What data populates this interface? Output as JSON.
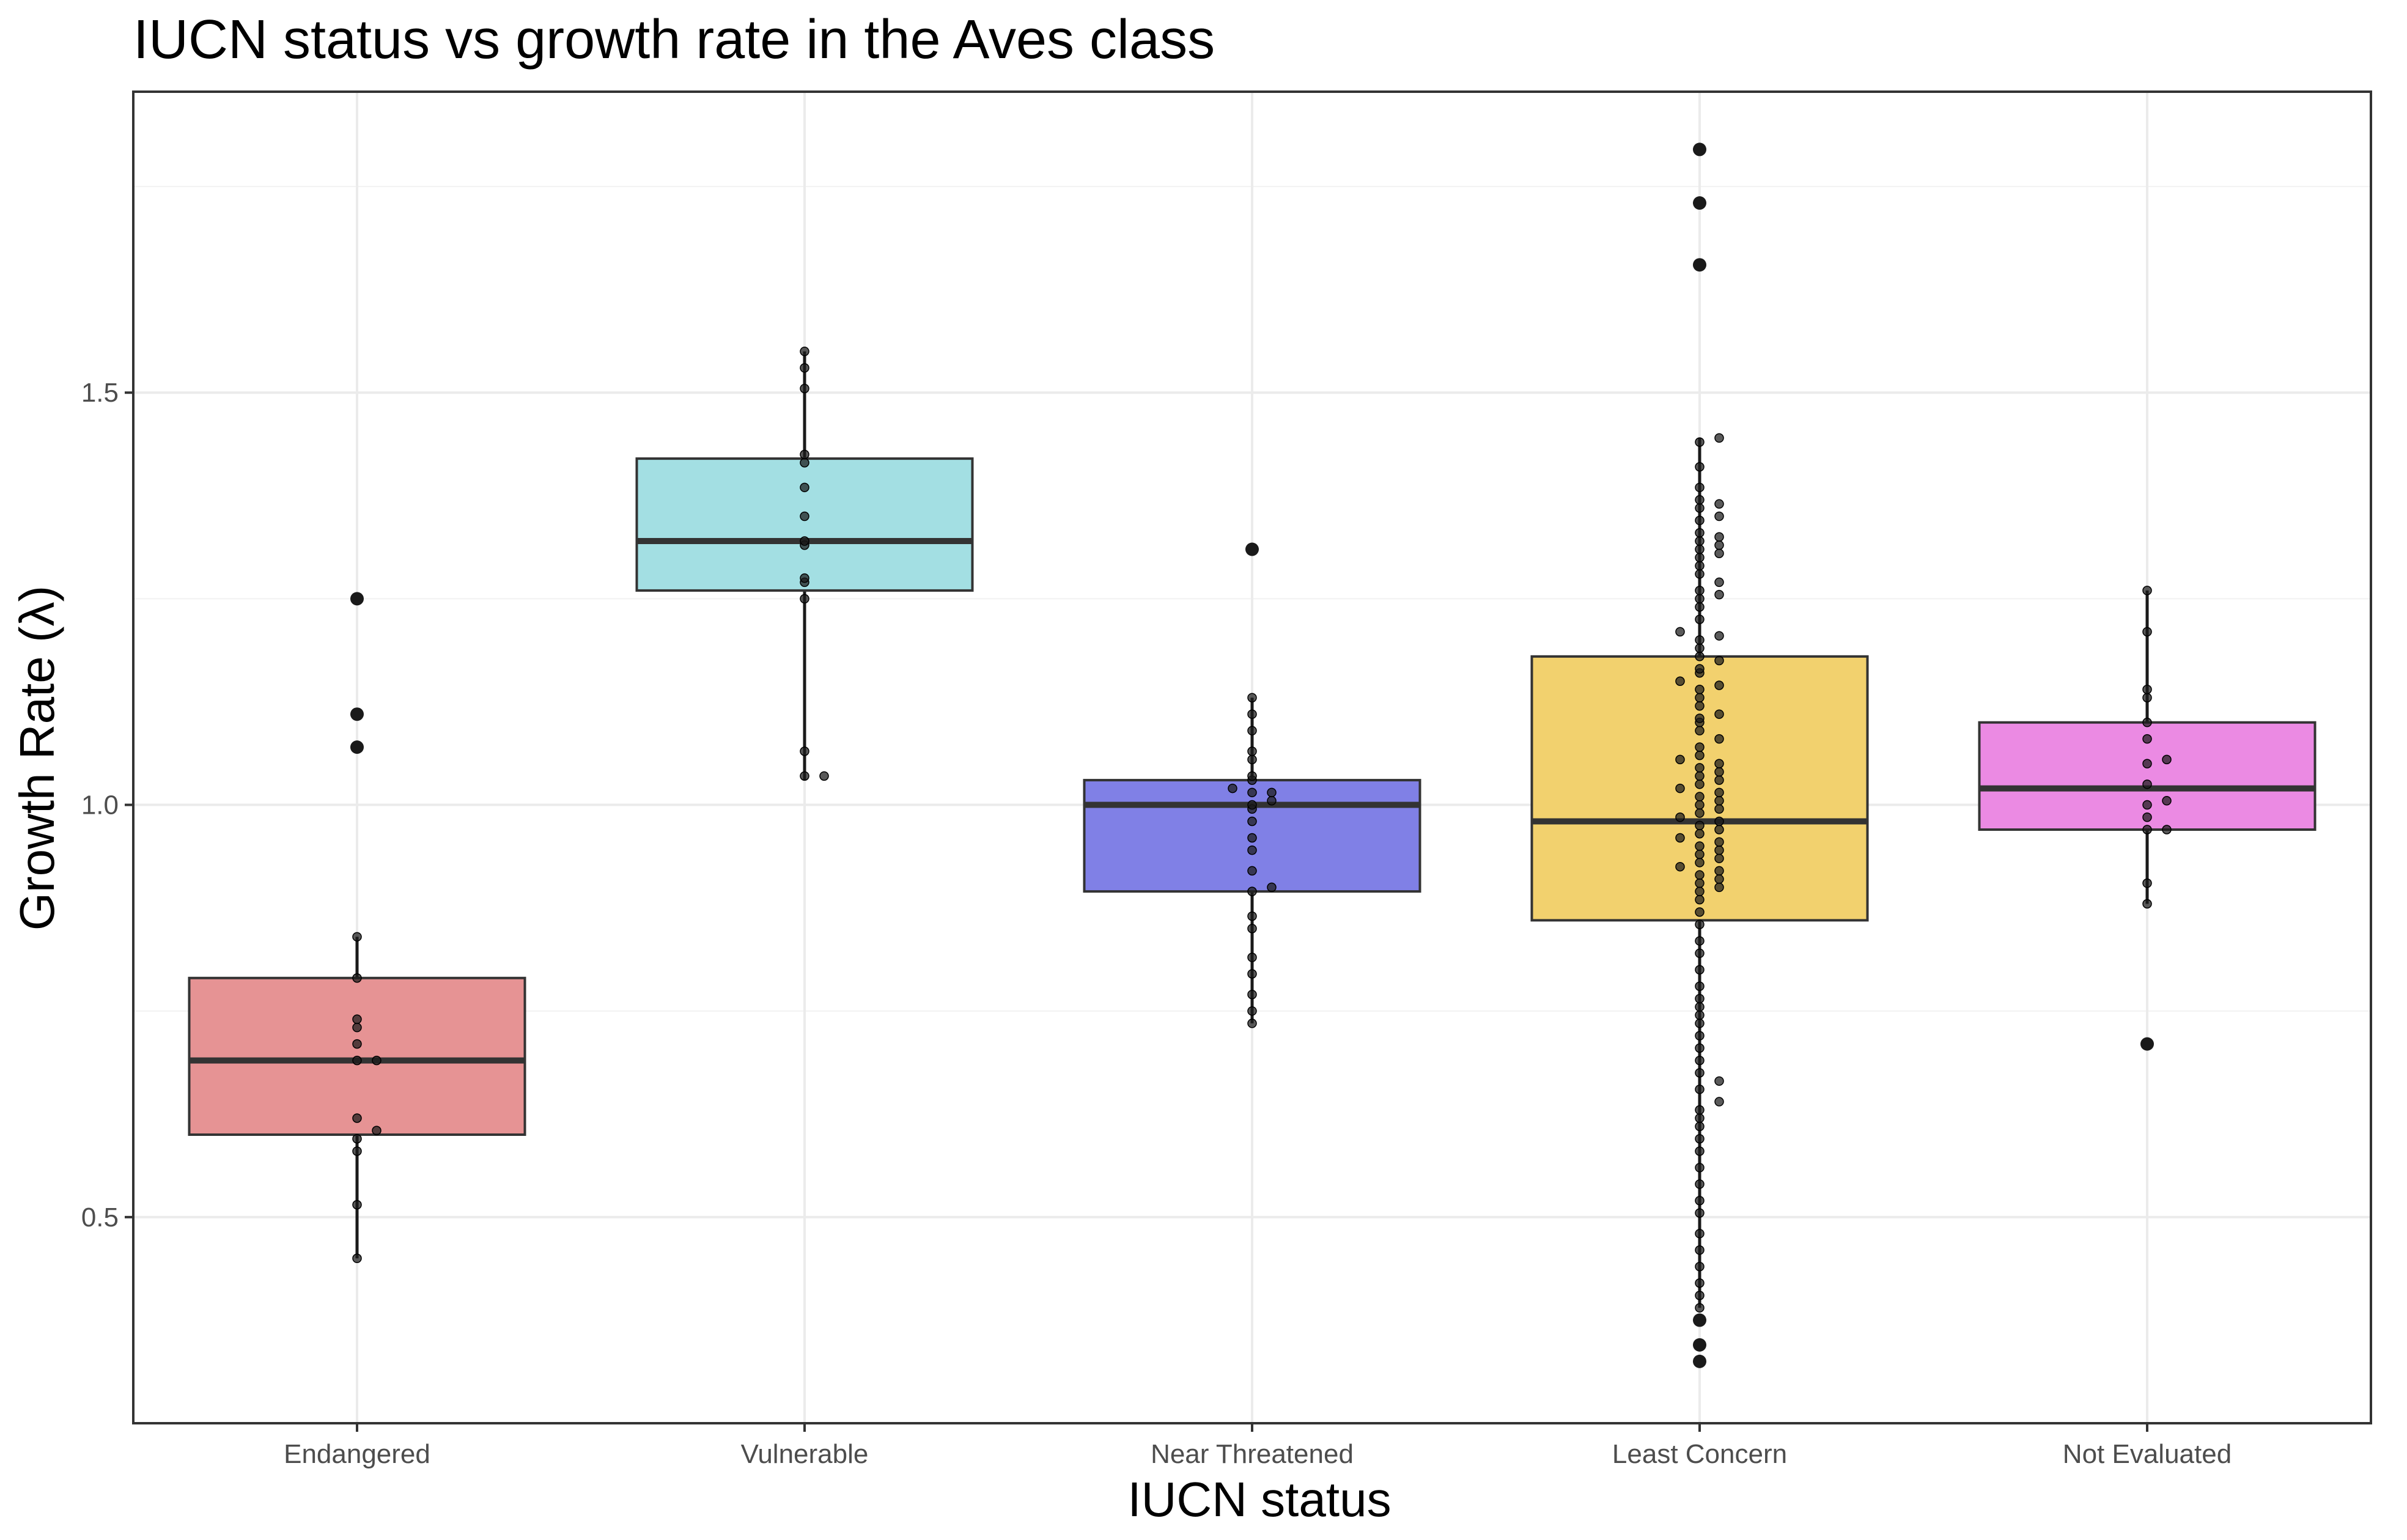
{
  "chart_data": {
    "type": "boxplot",
    "title": "IUCN status vs growth rate in the Aves class",
    "xlabel": "IUCN status",
    "ylabel": "Growth Rate (λ)",
    "ylim": [
      0.25,
      1.865
    ],
    "yticks": [
      0.5,
      1.0,
      1.5
    ],
    "ytick_labels": [
      "0.5",
      "1.0",
      "1.5"
    ],
    "grid": true,
    "legend": "none",
    "categories": [
      "Endangered",
      "Vulnerable",
      "Near Threatened",
      "Least Concern",
      "Not Evaluated"
    ],
    "series": [
      {
        "category": "Endangered",
        "color": "#e69394",
        "box": {
          "q1": 0.6,
          "median": 0.69,
          "q3": 0.79,
          "whisker_low": 0.45,
          "whisker_high": 0.84
        },
        "outliers": [
          1.25,
          1.11,
          1.07
        ],
        "points": [
          0.84,
          0.79,
          0.74,
          0.73,
          0.71,
          0.69,
          0.69,
          0.62,
          0.605,
          0.595,
          0.58,
          0.515,
          0.45
        ]
      },
      {
        "category": "Vulnerable",
        "color": "#a3dfe3",
        "box": {
          "q1": 1.26,
          "median": 1.32,
          "q3": 1.42,
          "whisker_low": 1.03,
          "whisker_high": 1.55
        },
        "outliers": [],
        "points": [
          1.55,
          1.53,
          1.505,
          1.425,
          1.415,
          1.385,
          1.35,
          1.32,
          1.315,
          1.275,
          1.27,
          1.25,
          1.065,
          1.035,
          1.035
        ]
      },
      {
        "category": "Near Threatened",
        "color": "#8080e6",
        "box": {
          "q1": 0.895,
          "median": 1.0,
          "q3": 1.03,
          "whisker_low": 0.735,
          "whisker_high": 1.13
        },
        "outliers": [
          1.31
        ],
        "points": [
          1.13,
          1.11,
          1.09,
          1.065,
          1.055,
          1.035,
          1.03,
          1.02,
          1.015,
          1.015,
          1.005,
          1.0,
          0.995,
          0.98,
          0.96,
          0.945,
          0.92,
          0.9,
          0.895,
          0.865,
          0.85,
          0.815,
          0.795,
          0.77,
          0.75,
          0.735
        ]
      },
      {
        "category": "Least Concern",
        "color": "#f2d16e",
        "box": {
          "q1": 0.86,
          "median": 0.98,
          "q3": 1.18,
          "whisker_low": 0.39,
          "whisker_high": 1.445
        },
        "outliers": [
          1.795,
          1.73,
          1.655,
          0.375,
          0.345,
          0.325
        ],
        "points": [
          1.445,
          1.44,
          1.41,
          1.385,
          1.37,
          1.365,
          1.36,
          1.35,
          1.345,
          1.33,
          1.325,
          1.32,
          1.315,
          1.31,
          1.305,
          1.3,
          1.29,
          1.28,
          1.27,
          1.26,
          1.255,
          1.25,
          1.24,
          1.225,
          1.21,
          1.205,
          1.2,
          1.19,
          1.18,
          1.175,
          1.165,
          1.16,
          1.15,
          1.145,
          1.14,
          1.13,
          1.12,
          1.11,
          1.105,
          1.1,
          1.09,
          1.08,
          1.07,
          1.06,
          1.055,
          1.05,
          1.045,
          1.04,
          1.035,
          1.03,
          1.025,
          1.02,
          1.015,
          1.01,
          1.005,
          1.0,
          0.995,
          0.99,
          0.985,
          0.98,
          0.975,
          0.97,
          0.965,
          0.96,
          0.955,
          0.95,
          0.945,
          0.94,
          0.935,
          0.93,
          0.925,
          0.92,
          0.915,
          0.91,
          0.905,
          0.9,
          0.895,
          0.885,
          0.87,
          0.855,
          0.835,
          0.82,
          0.8,
          0.78,
          0.765,
          0.755,
          0.745,
          0.735,
          0.72,
          0.705,
          0.69,
          0.675,
          0.665,
          0.655,
          0.64,
          0.63,
          0.62,
          0.61,
          0.595,
          0.58,
          0.56,
          0.54,
          0.52,
          0.505,
          0.48,
          0.46,
          0.44,
          0.42,
          0.405,
          0.39
        ]
      },
      {
        "category": "Not Evaluated",
        "color": "#eb8ae3",
        "box": {
          "q1": 0.97,
          "median": 1.02,
          "q3": 1.1,
          "whisker_low": 0.88,
          "whisker_high": 1.26
        },
        "outliers": [
          0.71
        ],
        "points": [
          1.26,
          1.21,
          1.14,
          1.13,
          1.1,
          1.08,
          1.055,
          1.05,
          1.025,
          1.005,
          1.0,
          0.985,
          0.97,
          0.97,
          0.905,
          0.88
        ]
      }
    ]
  }
}
